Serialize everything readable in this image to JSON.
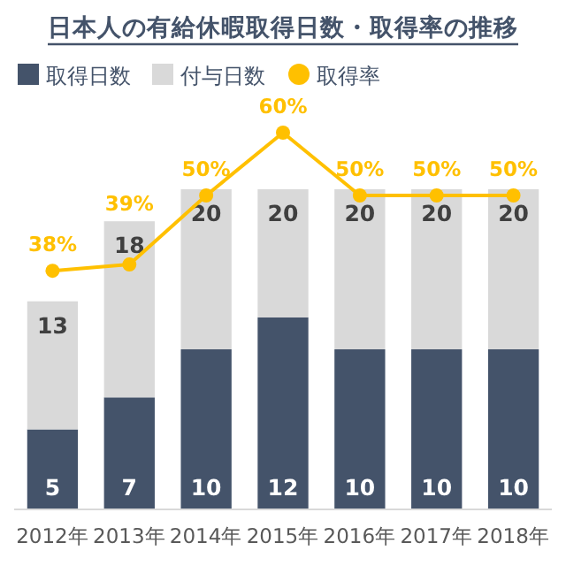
{
  "chart_data": {
    "type": "bar",
    "title": "日本人の有給休暇取得日数・取得率の推移",
    "categories": [
      "2012年",
      "2013年",
      "2014年",
      "2015年",
      "2016年",
      "2017年",
      "2018年"
    ],
    "stacked": true,
    "legend": "top left",
    "marker": "circle",
    "totals": [
      "13",
      "18",
      "20",
      "20",
      "20",
      "20",
      "20"
    ],
    "series": [
      {
        "name": "取得日数",
        "color": "#44536a",
        "values": [
          5,
          7,
          10,
          12,
          10,
          10,
          10
        ],
        "value_labels": [
          "5",
          "7",
          "10",
          "12",
          "10",
          "10",
          "10"
        ]
      },
      {
        "name": "付与日数",
        "color": "#d9d9d9",
        "values": [
          8,
          11,
          10,
          8,
          10,
          10,
          10
        ]
      },
      {
        "name": "取得率",
        "type": "line",
        "axis": "y2",
        "color": "#ffc000",
        "values": [
          38,
          39,
          50,
          60,
          50,
          50,
          50
        ],
        "value_labels": [
          "38%",
          "39%",
          "50%",
          "60%",
          "50%",
          "50%",
          "50%"
        ]
      }
    ]
  }
}
